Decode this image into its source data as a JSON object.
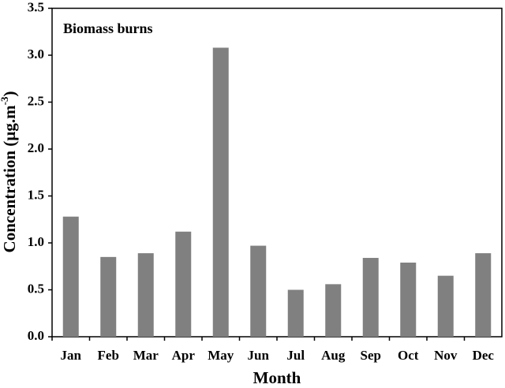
{
  "chart_data": {
    "type": "bar",
    "annotation": "Biomass burns",
    "x_label": "Month",
    "y_label": {
      "text": "Concentration (µg.m",
      "superscript": "-3",
      "suffix": ")"
    },
    "categories": [
      "Jan",
      "Feb",
      "Mar",
      "Apr",
      "May",
      "Jun",
      "Jul",
      "Aug",
      "Sep",
      "Oct",
      "Nov",
      "Dec"
    ],
    "values": [
      1.28,
      0.85,
      0.89,
      1.12,
      3.08,
      0.97,
      0.5,
      0.56,
      0.84,
      0.79,
      0.65,
      0.89
    ],
    "color": "#808080",
    "ylim": [
      0,
      3.5
    ],
    "yticks": [
      {
        "value": 0,
        "label": "0.0"
      },
      0.5,
      {
        "value": 1,
        "label": "1.0"
      },
      1.5,
      {
        "value": 2,
        "label": "2.0"
      },
      2.5,
      {
        "value": 3,
        "label": "3.0"
      },
      3.5
    ],
    "grid": false
  }
}
